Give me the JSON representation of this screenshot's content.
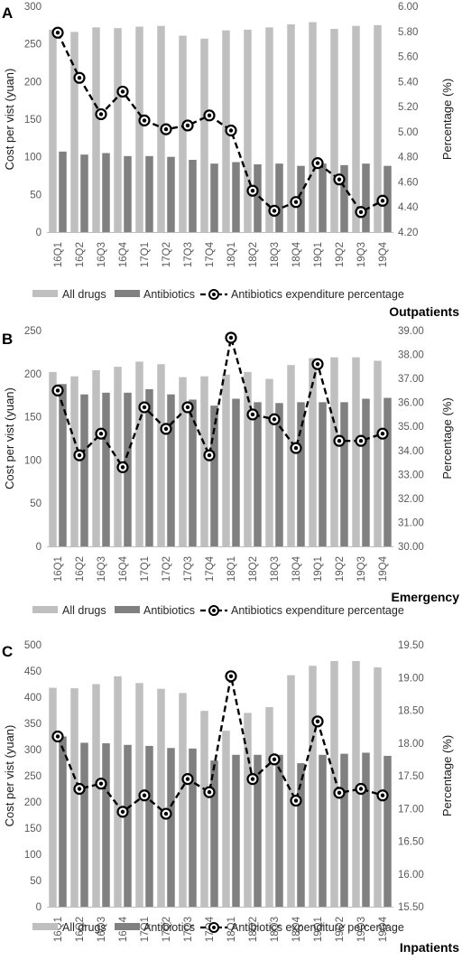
{
  "chart_data": [
    {
      "panel": "A",
      "caption": "Outpatients",
      "type": "bar",
      "categories": [
        "16Q1",
        "16Q2",
        "16Q3",
        "16Q4",
        "17Q1",
        "17Q2",
        "17Q3",
        "17Q4",
        "18Q1",
        "18Q2",
        "18Q3",
        "18Q4",
        "19Q1",
        "19Q2",
        "19Q3",
        "19Q4"
      ],
      "ylabel": "Cost per vist (yuan)",
      "y2label": "Percentage (%)",
      "ylim": [
        0,
        300
      ],
      "yticks": [
        "0",
        "50",
        "100",
        "150",
        "200",
        "250",
        "300"
      ],
      "y2lim": [
        4.2,
        6.0
      ],
      "y2ticks": [
        "4.20",
        "4.40",
        "4.60",
        "4.80",
        "5.00",
        "5.20",
        "5.40",
        "5.60",
        "5.80",
        "6.00"
      ],
      "series": [
        {
          "name": "All drugs",
          "axis": "left",
          "color": "#bfbfbf",
          "values": [
            269,
            266,
            272,
            271,
            273,
            274,
            261,
            257,
            268,
            269,
            272,
            276,
            279,
            270,
            274,
            275
          ]
        },
        {
          "name": "Antibiotics",
          "axis": "left",
          "color": "#808080",
          "values": [
            107,
            103,
            105,
            101,
            101,
            100,
            96,
            91,
            93,
            90,
            91,
            88,
            91,
            89,
            91,
            88
          ]
        },
        {
          "name": "Antibiotics expenditure percentage",
          "axis": "right",
          "color": "#000000",
          "values": [
            5.79,
            5.43,
            5.14,
            5.32,
            5.09,
            5.02,
            5.05,
            5.13,
            5.01,
            4.53,
            4.37,
            4.44,
            4.75,
            4.62,
            4.36,
            4.45
          ]
        }
      ],
      "legend": [
        "All drugs",
        "Antibiotics",
        "Antibiotics expenditure percentage"
      ]
    },
    {
      "panel": "B",
      "caption": "Emergency",
      "type": "bar",
      "categories": [
        "16Q1",
        "16Q2",
        "16Q3",
        "16Q4",
        "17Q1",
        "17Q2",
        "17Q3",
        "17Q4",
        "18Q1",
        "18Q2",
        "18Q3",
        "18Q4",
        "19Q1",
        "19Q2",
        "19Q3",
        "19Q4"
      ],
      "ylabel": "Cost per vist (yuan)",
      "y2label": "Percentage (%)",
      "ylim": [
        0,
        250
      ],
      "yticks": [
        "0",
        "50",
        "100",
        "150",
        "200",
        "250"
      ],
      "y2lim": [
        30.0,
        39.0
      ],
      "y2ticks": [
        "30.00",
        "31.00",
        "32.00",
        "33.00",
        "34.00",
        "35.00",
        "36.00",
        "37.00",
        "38.00",
        "39.00"
      ],
      "series": [
        {
          "name": "All drugs",
          "axis": "left",
          "color": "#bfbfbf",
          "values": [
            202,
            197,
            204,
            208,
            214,
            211,
            196,
            197,
            199,
            202,
            194,
            210,
            218,
            219,
            219,
            215
          ]
        },
        {
          "name": "Antibiotics",
          "axis": "left",
          "color": "#808080",
          "values": [
            188,
            176,
            178,
            178,
            182,
            176,
            170,
            163,
            171,
            167,
            166,
            167,
            167,
            167,
            171,
            172
          ]
        },
        {
          "name": "Antibiotics expenditure percentage",
          "axis": "right",
          "color": "#000000",
          "values": [
            36.5,
            33.8,
            34.7,
            33.3,
            35.8,
            34.9,
            35.8,
            33.8,
            38.7,
            35.5,
            35.3,
            34.1,
            37.6,
            34.4,
            34.4,
            34.7
          ]
        }
      ],
      "legend": [
        "All drugs",
        "Antibiotics",
        "Antibiotics expenditure percentage"
      ]
    },
    {
      "panel": "C",
      "caption": "Inpatients",
      "type": "bar",
      "categories": [
        "16Q1",
        "16Q2",
        "16Q3",
        "16Q4",
        "17Q1",
        "17Q2",
        "17Q3",
        "17Q4",
        "18Q1",
        "18Q2",
        "18Q3",
        "18Q4",
        "19Q1",
        "19Q2",
        "19Q3",
        "19Q4"
      ],
      "ylabel": "Cost per vist (yuan)",
      "y2label": "Percentage (%)",
      "ylim": [
        0,
        500
      ],
      "yticks": [
        "0",
        "50",
        "100",
        "150",
        "200",
        "250",
        "300",
        "350",
        "400",
        "450",
        "500"
      ],
      "y2lim": [
        15.5,
        19.5
      ],
      "y2ticks": [
        "15.50",
        "16.00",
        "16.50",
        "17.00",
        "17.50",
        "18.00",
        "18.50",
        "19.00",
        "19.50"
      ],
      "series": [
        {
          "name": "All drugs",
          "axis": "left",
          "color": "#bfbfbf",
          "values": [
            418,
            417,
            425,
            440,
            427,
            416,
            408,
            374,
            336,
            370,
            381,
            442,
            460,
            469,
            469,
            457
          ]
        },
        {
          "name": "Antibiotics",
          "axis": "left",
          "color": "#808080",
          "values": [
            325,
            313,
            312,
            309,
            307,
            303,
            302,
            279,
            290,
            290,
            290,
            274,
            290,
            292,
            294,
            288
          ]
        },
        {
          "name": "Antibiotics expenditure percentage",
          "axis": "right",
          "color": "#000000",
          "values": [
            18.1,
            17.3,
            17.38,
            16.95,
            17.2,
            16.92,
            17.45,
            17.25,
            19.02,
            17.45,
            17.75,
            17.12,
            18.33,
            17.24,
            17.3,
            17.2
          ]
        }
      ],
      "legend": [
        "All drugs",
        "Antibiotics",
        "Antibiotics expenditure percentage"
      ]
    }
  ]
}
